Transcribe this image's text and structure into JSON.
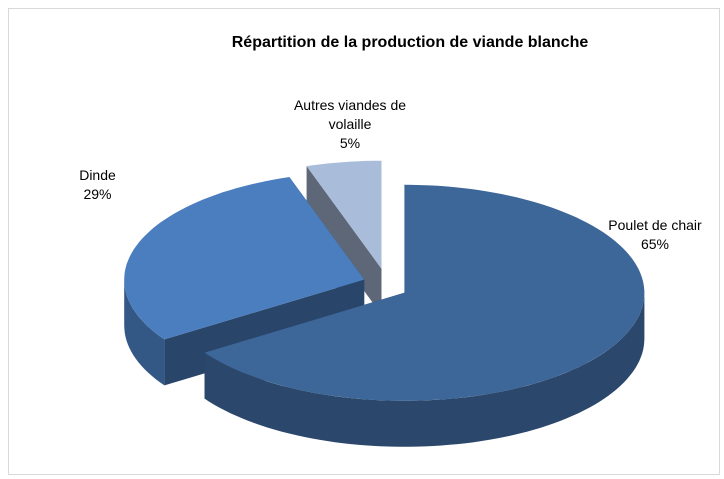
{
  "chart_data": {
    "type": "pie",
    "title": "Répartition de la production de viande blanche",
    "categories": [
      "Poulet de chair",
      "Dinde",
      "Autres viandes de volaille"
    ],
    "values": [
      65,
      29,
      5
    ],
    "value_labels": [
      "65%",
      "29%",
      "5%"
    ],
    "colors": [
      "#3d6699",
      "#4a7ebf",
      "#a9bcda"
    ]
  }
}
